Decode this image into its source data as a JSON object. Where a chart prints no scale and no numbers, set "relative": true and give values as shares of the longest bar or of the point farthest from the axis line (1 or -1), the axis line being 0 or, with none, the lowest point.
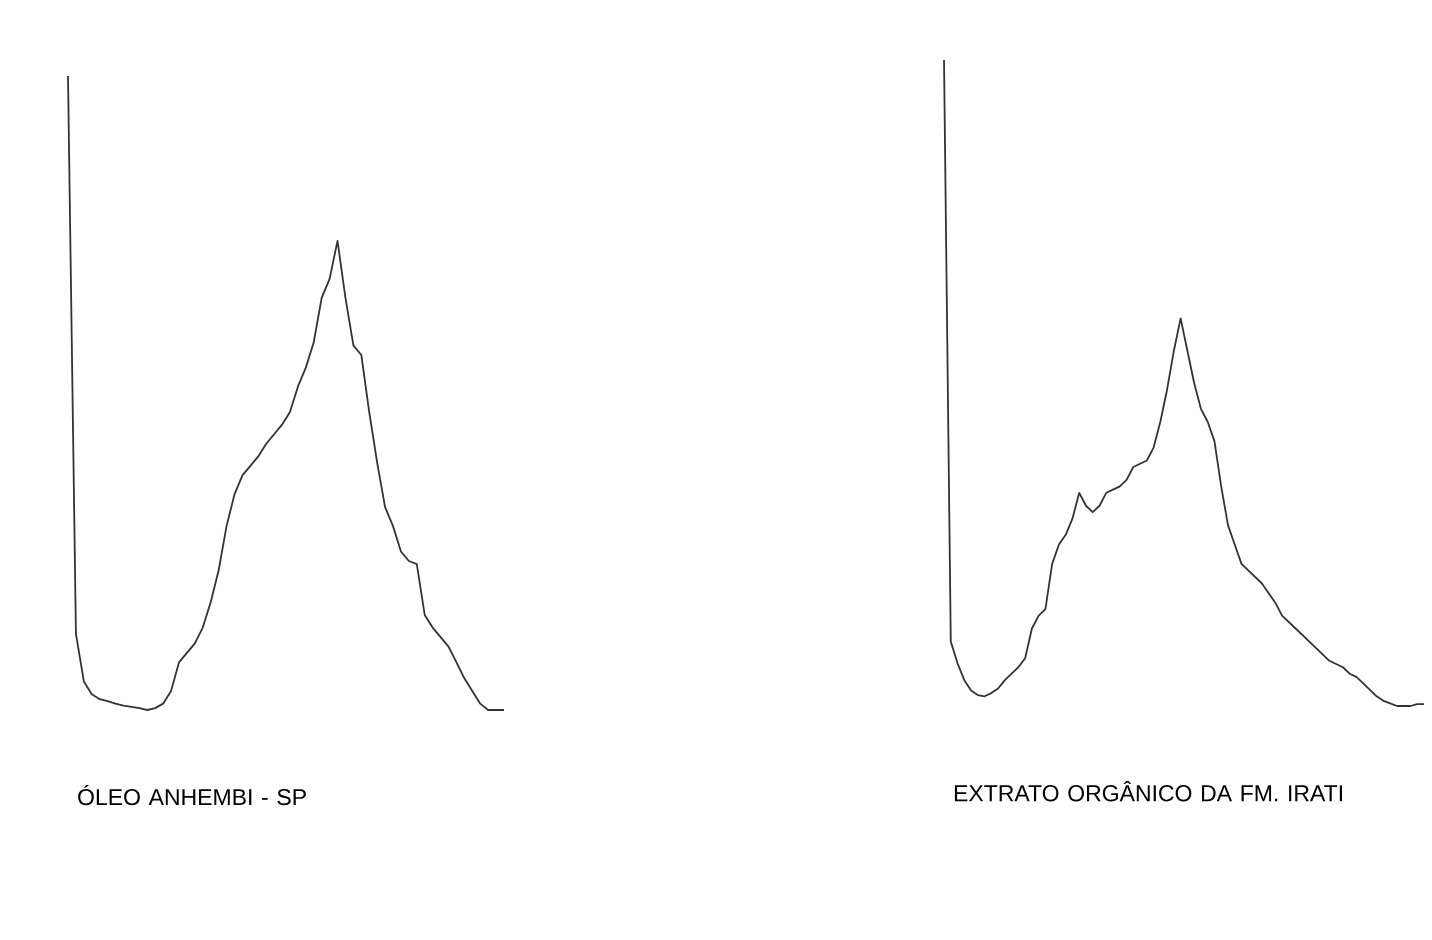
{
  "chart_data": [
    {
      "type": "line",
      "title": "ÓLEO ANHEMBI - SP",
      "relative": true,
      "categories": [
        null,
        null,
        null,
        null,
        null,
        null,
        null,
        null,
        null,
        null,
        null,
        null,
        null,
        null,
        null,
        null,
        null,
        null,
        null,
        null,
        null,
        null,
        null,
        null,
        null,
        null,
        null,
        null,
        null,
        null,
        null,
        null,
        null,
        null,
        null,
        null,
        null,
        null,
        null,
        null,
        null,
        null,
        null,
        null,
        null,
        null,
        null,
        null,
        null,
        null,
        null,
        null,
        null,
        null,
        null,
        null
      ],
      "series": [
        {
          "color": "#333333",
          "values": [
            1.0,
            0.12,
            0.045,
            0.025,
            0.017,
            0.014,
            0.01,
            0.007,
            0.005,
            0.003,
            0.0,
            0.003,
            0.01,
            0.03,
            0.075,
            0.09,
            0.105,
            0.13,
            0.17,
            0.22,
            0.29,
            0.34,
            0.37,
            0.385,
            0.4,
            0.42,
            0.435,
            0.45,
            0.47,
            0.51,
            0.54,
            0.58,
            0.65,
            0.68,
            0.74,
            0.65,
            0.575,
            0.56,
            0.47,
            0.39,
            0.32,
            0.29,
            0.25,
            0.235,
            0.23,
            0.15,
            0.13,
            0.115,
            0.1,
            0.075,
            0.05,
            0.03,
            0.01,
            0.0,
            0.0,
            0.0
          ]
        }
      ]
    },
    {
      "type": "line",
      "title": "EXTRATO ORGÂNICO DA FM. IRATI",
      "relative": true,
      "categories": [
        null,
        null,
        null,
        null,
        null,
        null,
        null,
        null,
        null,
        null,
        null,
        null,
        null,
        null,
        null,
        null,
        null,
        null,
        null,
        null,
        null,
        null,
        null,
        null,
        null,
        null,
        null,
        null,
        null,
        null,
        null,
        null,
        null,
        null,
        null,
        null,
        null,
        null,
        null,
        null,
        null,
        null,
        null,
        null,
        null,
        null,
        null,
        null,
        null,
        null,
        null,
        null,
        null,
        null,
        null,
        null,
        null,
        null,
        null,
        null,
        null,
        null,
        null,
        null,
        null,
        null,
        null,
        null,
        null,
        null,
        null,
        null
      ],
      "series": [
        {
          "color": "#333333",
          "values": [
            1.0,
            0.1,
            0.066,
            0.04,
            0.024,
            0.017,
            0.015,
            0.02,
            0.027,
            0.04,
            0.05,
            0.06,
            0.074,
            0.12,
            0.14,
            0.15,
            0.22,
            0.25,
            0.265,
            0.29,
            0.33,
            0.31,
            0.3,
            0.31,
            0.33,
            0.335,
            0.34,
            0.35,
            0.37,
            0.375,
            0.38,
            0.4,
            0.44,
            0.49,
            0.55,
            0.6,
            0.55,
            0.5,
            0.46,
            0.44,
            0.41,
            0.34,
            0.28,
            0.25,
            0.22,
            0.21,
            0.2,
            0.19,
            0.175,
            0.16,
            0.14,
            0.13,
            0.12,
            0.11,
            0.1,
            0.09,
            0.08,
            0.07,
            0.065,
            0.06,
            0.05,
            0.045,
            0.035,
            0.025,
            0.015,
            0.008,
            0.004,
            0.0,
            0.0,
            0.0,
            0.003,
            0.003
          ]
        }
      ]
    }
  ]
}
